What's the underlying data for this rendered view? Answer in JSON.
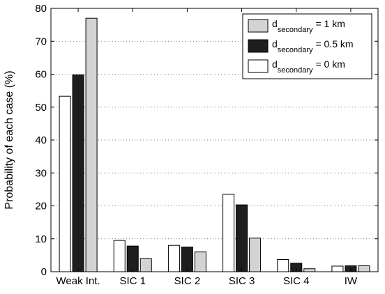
{
  "chart_data": {
    "type": "bar",
    "categories": [
      "Weak Int.",
      "SIC 1",
      "SIC 2",
      "SIC 3",
      "SIC 4",
      "IW"
    ],
    "series": [
      {
        "name_main": "d",
        "name_sub": "secondary",
        "name_suffix": " = 0 km",
        "color": "#ffffff",
        "values": [
          53.3,
          9.5,
          8.0,
          23.5,
          3.7,
          1.7
        ]
      },
      {
        "name_main": "d",
        "name_sub": "secondary",
        "name_suffix": " = 0.5 km",
        "color": "#1e1e1e",
        "values": [
          59.8,
          7.8,
          7.5,
          20.3,
          2.6,
          1.8
        ]
      },
      {
        "name_main": "d",
        "name_sub": "secondary",
        "name_suffix": " = 1 km",
        "color": "#d3d3d3",
        "values": [
          77.0,
          4.0,
          6.0,
          10.2,
          0.9,
          1.8
        ]
      }
    ],
    "legend_order": [
      2,
      1,
      0
    ],
    "xlabel": "",
    "ylabel": "Probability of each case (%)",
    "ylim": [
      0,
      80
    ],
    "yticks": [
      0,
      10,
      20,
      30,
      40,
      50,
      60,
      70,
      80
    ],
    "grid": "horizontal-dotted",
    "legend_position": "top-right"
  }
}
